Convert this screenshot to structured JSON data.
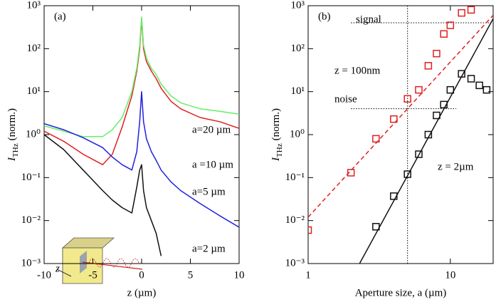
{
  "chart_data": [
    {
      "type": "line",
      "title": "(a)",
      "xlabel": "z (µm)",
      "ylabel": {
        "symbol": "I",
        "subscript": "THz",
        "text": "(norm.)"
      },
      "xlim": [
        -10,
        10
      ],
      "xticks": [
        -10,
        -5,
        0,
        5,
        10
      ],
      "ylim": [
        0.001,
        1000
      ],
      "yscale": "log",
      "yticks": [
        {
          "value": 0.001,
          "label": "10⁻³"
        },
        {
          "value": 0.01,
          "label": "10⁻²"
        },
        {
          "value": 0.1,
          "label": "10⁻¹"
        },
        {
          "value": 1,
          "label": "10⁰"
        },
        {
          "value": 10,
          "label": "10¹"
        },
        {
          "value": 100,
          "label": "10²"
        },
        {
          "value": 1000,
          "label": "10³"
        }
      ],
      "x": [
        -10,
        -8,
        -6,
        -4,
        -3,
        -2,
        -1,
        -0.5,
        -0.2,
        0,
        0.2,
        0.5,
        1,
        1.5,
        2,
        3,
        4,
        6,
        8,
        10
      ],
      "series": [
        {
          "name": "a=20 µm",
          "color": "#e02020",
          "values": [
            1.2,
            0.7,
            0.35,
            0.2,
            0.35,
            1.5,
            8,
            30,
            100,
            500,
            100,
            50,
            30,
            20,
            12,
            6,
            4,
            2.5,
            2,
            1.4
          ]
        },
        {
          "name": "a =10 µm",
          "color": "#66ee66",
          "values": [
            1.6,
            1.2,
            0.9,
            0.9,
            1.3,
            2.5,
            10,
            35,
            120,
            550,
            120,
            60,
            35,
            25,
            15,
            8,
            5.5,
            4,
            3.5,
            3
          ]
        },
        {
          "name": "a=5 µm",
          "color": "#2020e0",
          "values": [
            1.8,
            1.3,
            0.85,
            0.5,
            0.3,
            0.2,
            0.15,
            0.4,
            2,
            10,
            2,
            0.8,
            0.4,
            0.25,
            0.15,
            0.08,
            0.05,
            0.025,
            0.013,
            0.007
          ]
        },
        {
          "name": "a=2 µm",
          "color": "#111111",
          "values": [
            1.0,
            0.45,
            0.15,
            0.05,
            0.03,
            0.02,
            0.015,
            0.06,
            0.15,
            0.2,
            0.05,
            0.02,
            0.01,
            0.005,
            0.0015,
            null,
            null,
            null,
            null,
            null
          ]
        }
      ],
      "inset_label": "z"
    },
    {
      "type": "scatter",
      "title": "(b)",
      "xlabel": "Aperture size,  a (µm)",
      "ylabel": {
        "symbol": "I",
        "subscript": "THz",
        "text": "(norm.)"
      },
      "xlim": [
        1,
        20
      ],
      "xscale": "log",
      "xticks": [
        1,
        10
      ],
      "ylim": [
        0.001,
        1000
      ],
      "yscale": "log",
      "yticks": [
        {
          "value": 0.001,
          "label": "10⁻³"
        },
        {
          "value": 0.01,
          "label": "10⁻²"
        },
        {
          "value": 0.1,
          "label": "10⁻¹"
        },
        {
          "value": 1,
          "label": "10⁰"
        },
        {
          "value": 10,
          "label": "10¹"
        },
        {
          "value": 100,
          "label": "10²"
        },
        {
          "value": 1000,
          "label": "10³"
        }
      ],
      "series": [
        {
          "name": "z = 100nm",
          "color": "#e02020",
          "style": "markers",
          "x": [
            1,
            2,
            3,
            4,
            5,
            6,
            7,
            8,
            9,
            10,
            12,
            14
          ],
          "values": [
            0.006,
            0.13,
            0.8,
            2.3,
            6.8,
            11,
            40,
            77,
            220,
            350,
            680,
            800
          ]
        },
        {
          "color": "#e02020",
          "style": "dashed",
          "x": [
            1,
            20
          ],
          "values": [
            0.012,
            600
          ]
        },
        {
          "name": "z = 2µm",
          "color": "#111111",
          "style": "markers",
          "x": [
            3,
            4,
            5,
            6,
            7,
            8,
            9,
            10,
            12,
            14,
            16,
            18
          ],
          "values": [
            0.0072,
            0.037,
            0.12,
            0.35,
            1.0,
            2.8,
            5,
            11,
            26,
            20,
            14,
            11
          ]
        },
        {
          "color": "#111111",
          "style": "solid",
          "x": [
            2.3,
            20
          ],
          "values": [
            0.001,
            500
          ]
        }
      ],
      "reference_lines": [
        {
          "label": "signal",
          "y": 400,
          "x": [
            2,
            20
          ]
        },
        {
          "label": "noise",
          "y": 4,
          "x": [
            2,
            11
          ]
        },
        {
          "x": 5
        }
      ]
    }
  ]
}
